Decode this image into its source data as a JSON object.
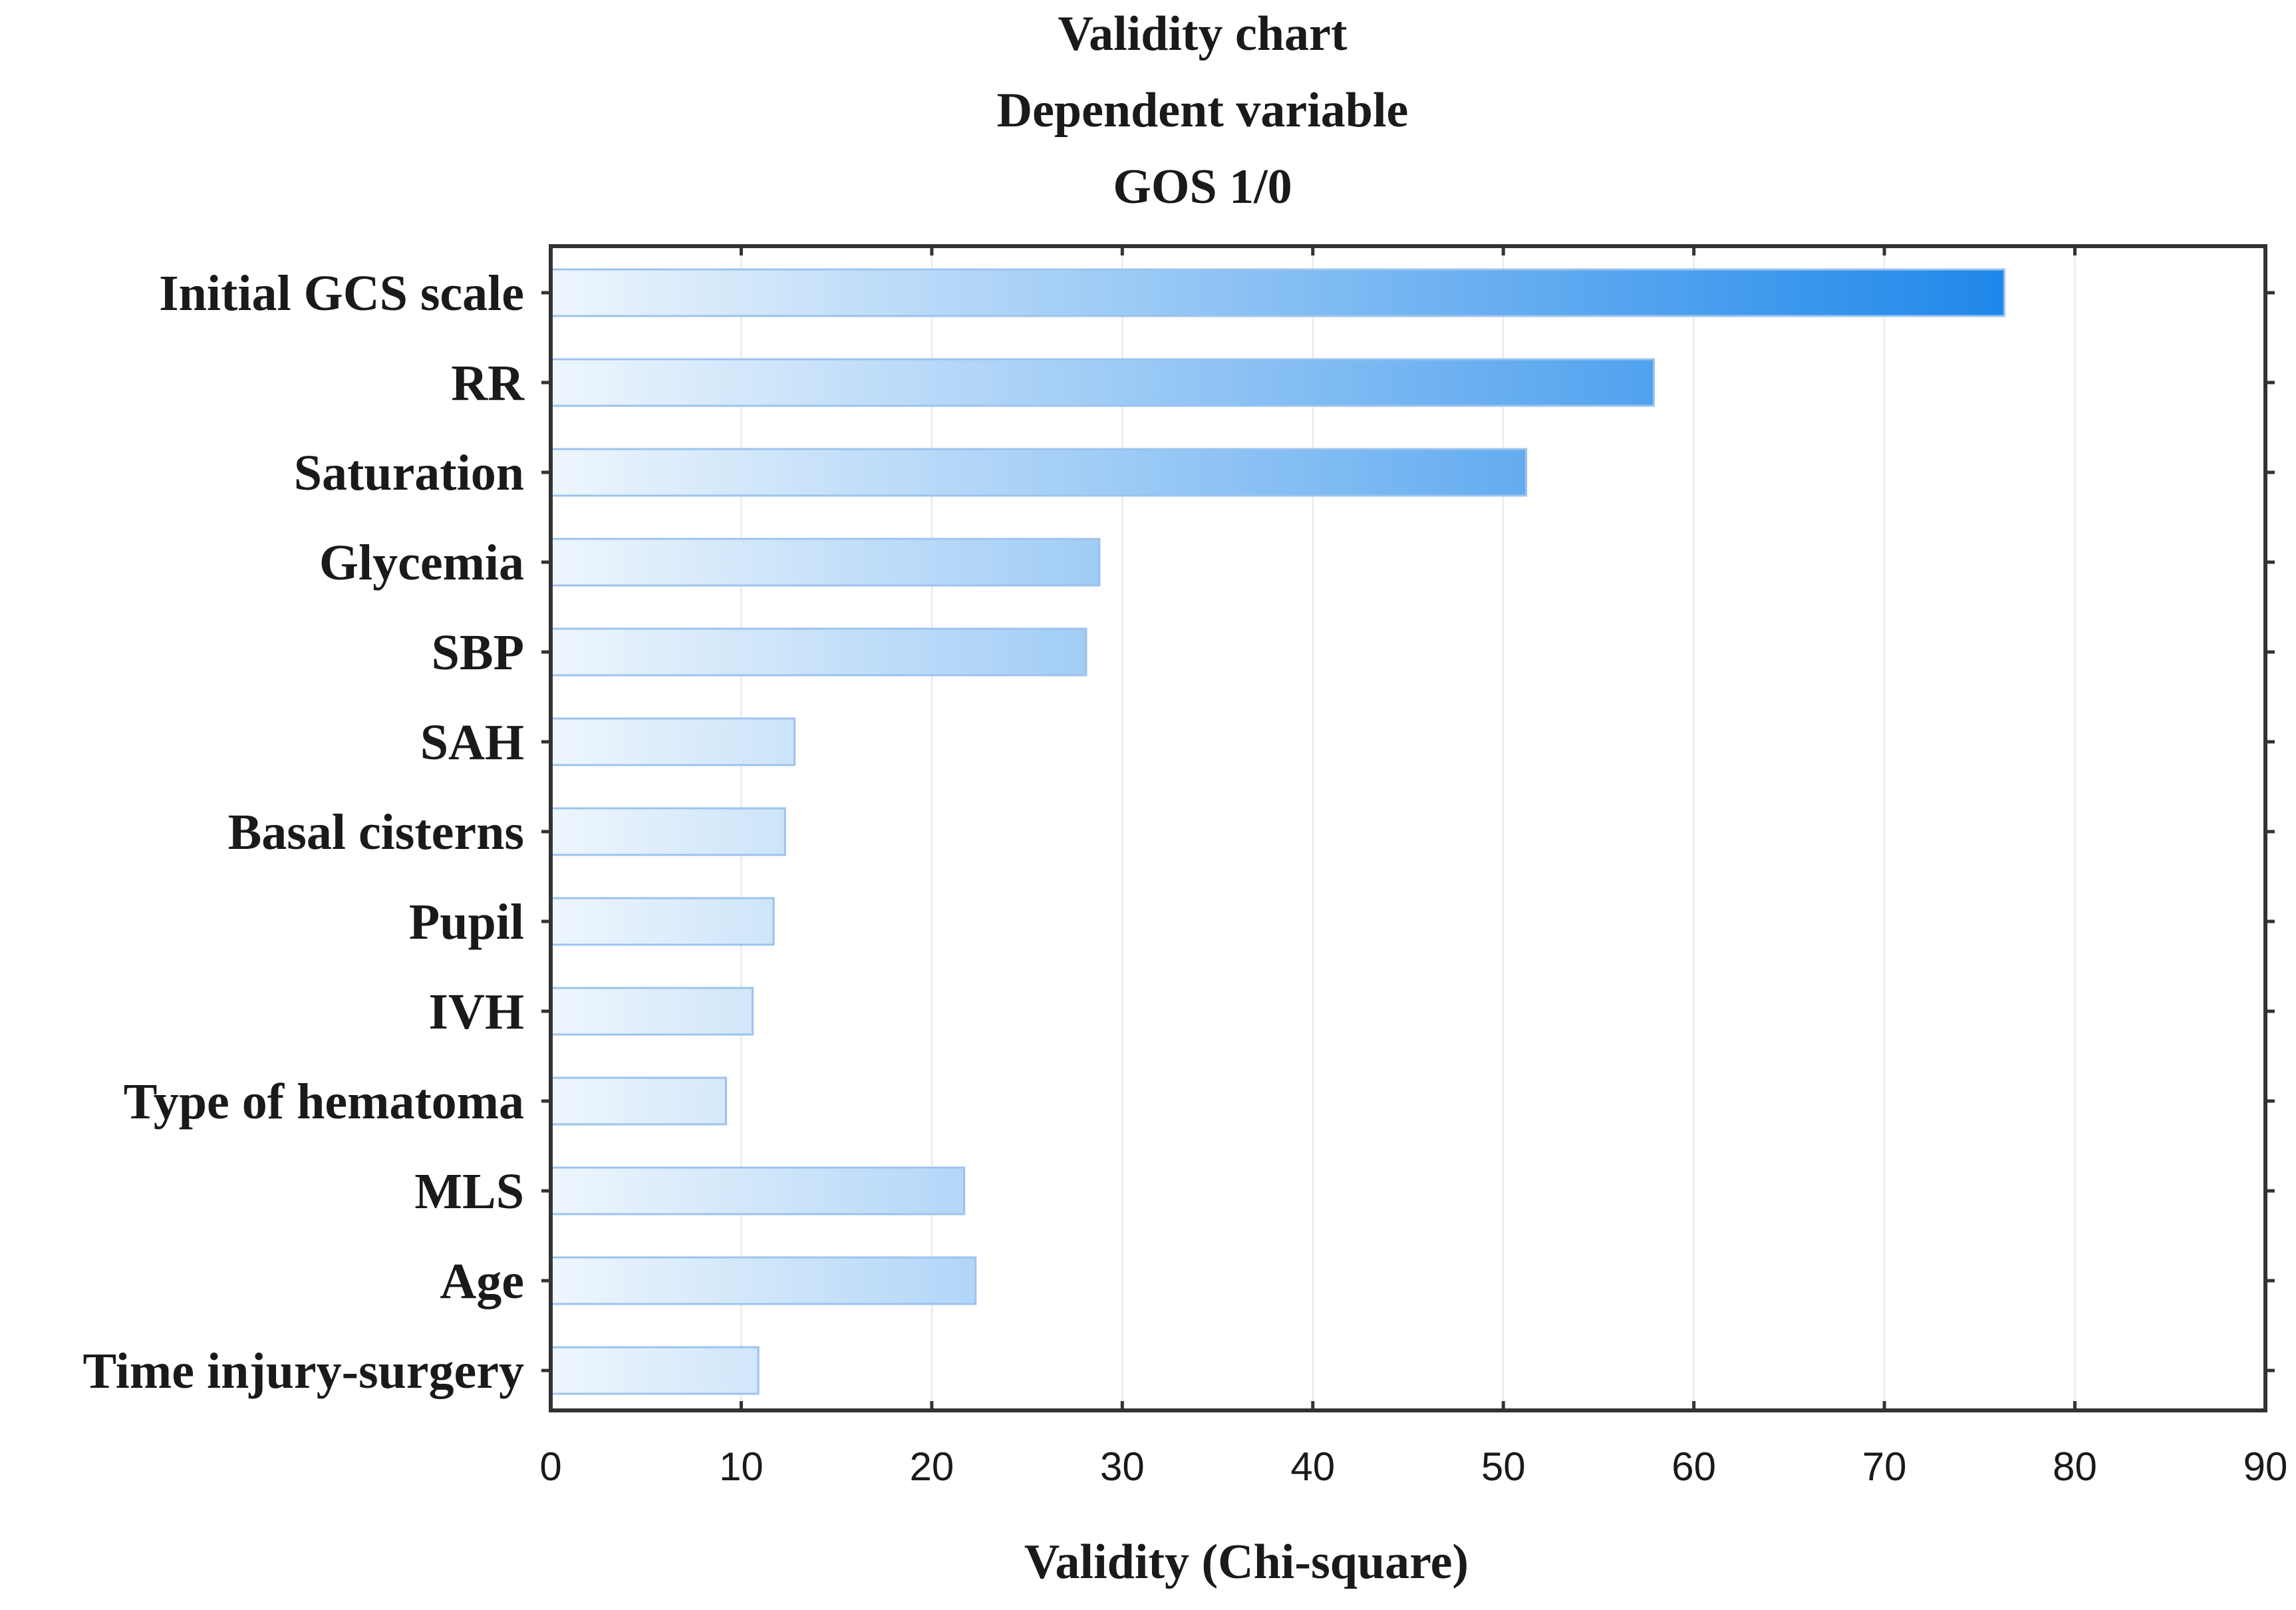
{
  "chart_data": {
    "type": "bar",
    "orientation": "horizontal",
    "title": [
      "Validity chart",
      "Dependent variable",
      "GOS 1/0"
    ],
    "xlabel": "Validity (Chi-square)",
    "ylabel": "",
    "xlim": [
      0,
      90
    ],
    "xticks": [
      0,
      10,
      20,
      30,
      40,
      50,
      60,
      70,
      80,
      90
    ],
    "grid": true,
    "legend": "none",
    "categories": [
      "Initial GCS scale",
      "RR",
      "Saturation",
      "Glycemia",
      "SBP",
      "SAH",
      "Basal cisterns",
      "Pupil",
      "IVH",
      "Type of hematoma",
      "MLS",
      "Age",
      "Time injury-surgery"
    ],
    "values": [
      76.3,
      57.9,
      51.2,
      28.8,
      28.1,
      12.8,
      12.3,
      11.7,
      10.6,
      9.2,
      21.7,
      22.3,
      10.9
    ],
    "colors": {
      "bar_light": "#eef6fd",
      "bar_dark": "#1f88ea",
      "bar_edge": "#9cc3ee",
      "frame": "#333333",
      "grid": "#e6e6e6",
      "text": "#1a1a1a"
    }
  }
}
